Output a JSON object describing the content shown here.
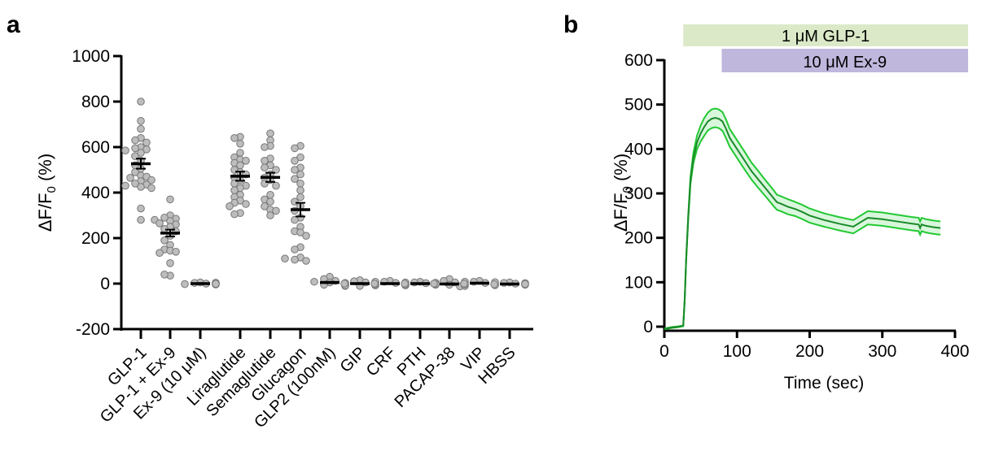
{
  "chart_data": [
    {
      "panel_label": "a",
      "type": "scatter",
      "title": "",
      "xlabel": "",
      "ylabel": "ΔF/F",
      "ylabel_sub": "0",
      "ylabel_suffix": " (%)",
      "ylim": [
        -200,
        1000
      ],
      "yticks": [
        -200,
        0,
        200,
        400,
        600,
        800,
        1000
      ],
      "grid": false,
      "categories": [
        "GLP-1",
        "GLP-1 + Ex-9",
        "Ex-9 (10 μM)",
        "Liraglutide",
        "Semaglutide",
        "Glucagon",
        "GLP2 (100nM)",
        "GIP",
        "CRF",
        "PTH",
        "PACAP-38",
        "VIP",
        "HBSS"
      ],
      "means": [
        527,
        222,
        0,
        472,
        467,
        325,
        5,
        0,
        0,
        0,
        -2,
        2,
        -2
      ],
      "sem": [
        22,
        15,
        2,
        20,
        20,
        30,
        3,
        2,
        2,
        2,
        3,
        2,
        2
      ],
      "points": [
        [
          800,
          715,
          680,
          640,
          630,
          620,
          600,
          595,
          590,
          585,
          575,
          560,
          540,
          520,
          505,
          490,
          475,
          470,
          465,
          455,
          450,
          440,
          435,
          430,
          425,
          420,
          330,
          280
        ],
        [
          370,
          300,
          290,
          285,
          280,
          275,
          265,
          260,
          250,
          240,
          230,
          210,
          190,
          170,
          150,
          145,
          140,
          135,
          90,
          35,
          40
        ],
        [
          5,
          3,
          0,
          -2,
          -4,
          2,
          -3,
          4,
          0,
          -1
        ],
        [
          645,
          640,
          615,
          575,
          555,
          545,
          540,
          530,
          520,
          500,
          490,
          480,
          465,
          455,
          440,
          430,
          420,
          410,
          390,
          380,
          365,
          355,
          350,
          340,
          310,
          305
        ],
        [
          660,
          630,
          605,
          600,
          550,
          540,
          520,
          510,
          500,
          480,
          465,
          455,
          440,
          430,
          390,
          370,
          360,
          340,
          325,
          320,
          300
        ],
        [
          605,
          595,
          555,
          540,
          510,
          500,
          480,
          460,
          440,
          410,
          380,
          360,
          340,
          320,
          290,
          280,
          250,
          230,
          225,
          210,
          160,
          150,
          115,
          105,
          100,
          110
        ],
        [
          30,
          20,
          12,
          8,
          5,
          0,
          -5,
          -10,
          -8,
          3
        ],
        [
          15,
          10,
          5,
          0,
          -5,
          -10,
          -8,
          3,
          8,
          -3
        ],
        [
          12,
          8,
          3,
          0,
          -5,
          -8,
          5,
          -3
        ],
        [
          8,
          5,
          2,
          0,
          -3,
          -5,
          4,
          -2
        ],
        [
          20,
          12,
          5,
          0,
          -5,
          -12,
          -10,
          8,
          -3
        ],
        [
          12,
          8,
          3,
          0,
          -4,
          -7,
          6
        ],
        [
          5,
          3,
          0,
          -3,
          -5,
          2,
          -2
        ]
      ]
    },
    {
      "panel_label": "b",
      "type": "line",
      "title": "",
      "xlabel": "Time (sec)",
      "ylabel": "ΔF/F",
      "ylabel_sub": "0",
      "ylabel_suffix": " (%)",
      "xlim": [
        0,
        400
      ],
      "ylim": [
        0,
        600
      ],
      "xticks": [
        0,
        100,
        200,
        300,
        400
      ],
      "yticks": [
        0,
        100,
        200,
        300,
        400,
        500,
        600
      ],
      "grid": false,
      "annotations": [
        {
          "label": "1 μM GLP-1",
          "start": 26,
          "end": 418,
          "color": "#dbe9c8"
        },
        {
          "label": "10 μM Ex-9",
          "start": 79,
          "end": 418,
          "color": "#bfb7dc"
        }
      ],
      "series": [
        {
          "name": "mean",
          "color": "#1a8a2a",
          "x": [
            0,
            10,
            20,
            26,
            28,
            30,
            33,
            36,
            40,
            45,
            50,
            55,
            60,
            65,
            70,
            75,
            80,
            85,
            90,
            100,
            110,
            120,
            130,
            140,
            150,
            155,
            160,
            170,
            180,
            190,
            200,
            220,
            240,
            260,
            280,
            300,
            320,
            340,
            350,
            352,
            354,
            360,
            370,
            380
          ],
          "y": [
            -5,
            -2,
            0,
            2,
            60,
            150,
            250,
            330,
            380,
            415,
            435,
            450,
            462,
            468,
            470,
            468,
            462,
            445,
            425,
            400,
            375,
            350,
            330,
            310,
            290,
            280,
            277,
            270,
            265,
            258,
            250,
            240,
            232,
            225,
            245,
            242,
            237,
            232,
            230,
            222,
            230,
            227,
            224,
            222
          ]
        },
        {
          "name": "sem_band",
          "color": "#22c832",
          "fill": "#d9f7dc",
          "x": [
            0,
            10,
            20,
            26,
            28,
            30,
            33,
            36,
            40,
            45,
            50,
            55,
            60,
            65,
            70,
            75,
            80,
            85,
            90,
            100,
            110,
            120,
            130,
            140,
            150,
            155,
            160,
            170,
            180,
            190,
            200,
            220,
            240,
            260,
            280,
            300,
            320,
            340,
            350,
            352,
            354,
            360,
            370,
            380
          ],
          "half_width": [
            1,
            1,
            1,
            1,
            2,
            3,
            5,
            8,
            12,
            15,
            18,
            20,
            20,
            21,
            21,
            21,
            21,
            21,
            20,
            20,
            20,
            19,
            19,
            18,
            18,
            17,
            17,
            17,
            16,
            16,
            16,
            15,
            15,
            15,
            15,
            15,
            15,
            15,
            15,
            15,
            15,
            15,
            15,
            15
          ]
        }
      ]
    }
  ]
}
